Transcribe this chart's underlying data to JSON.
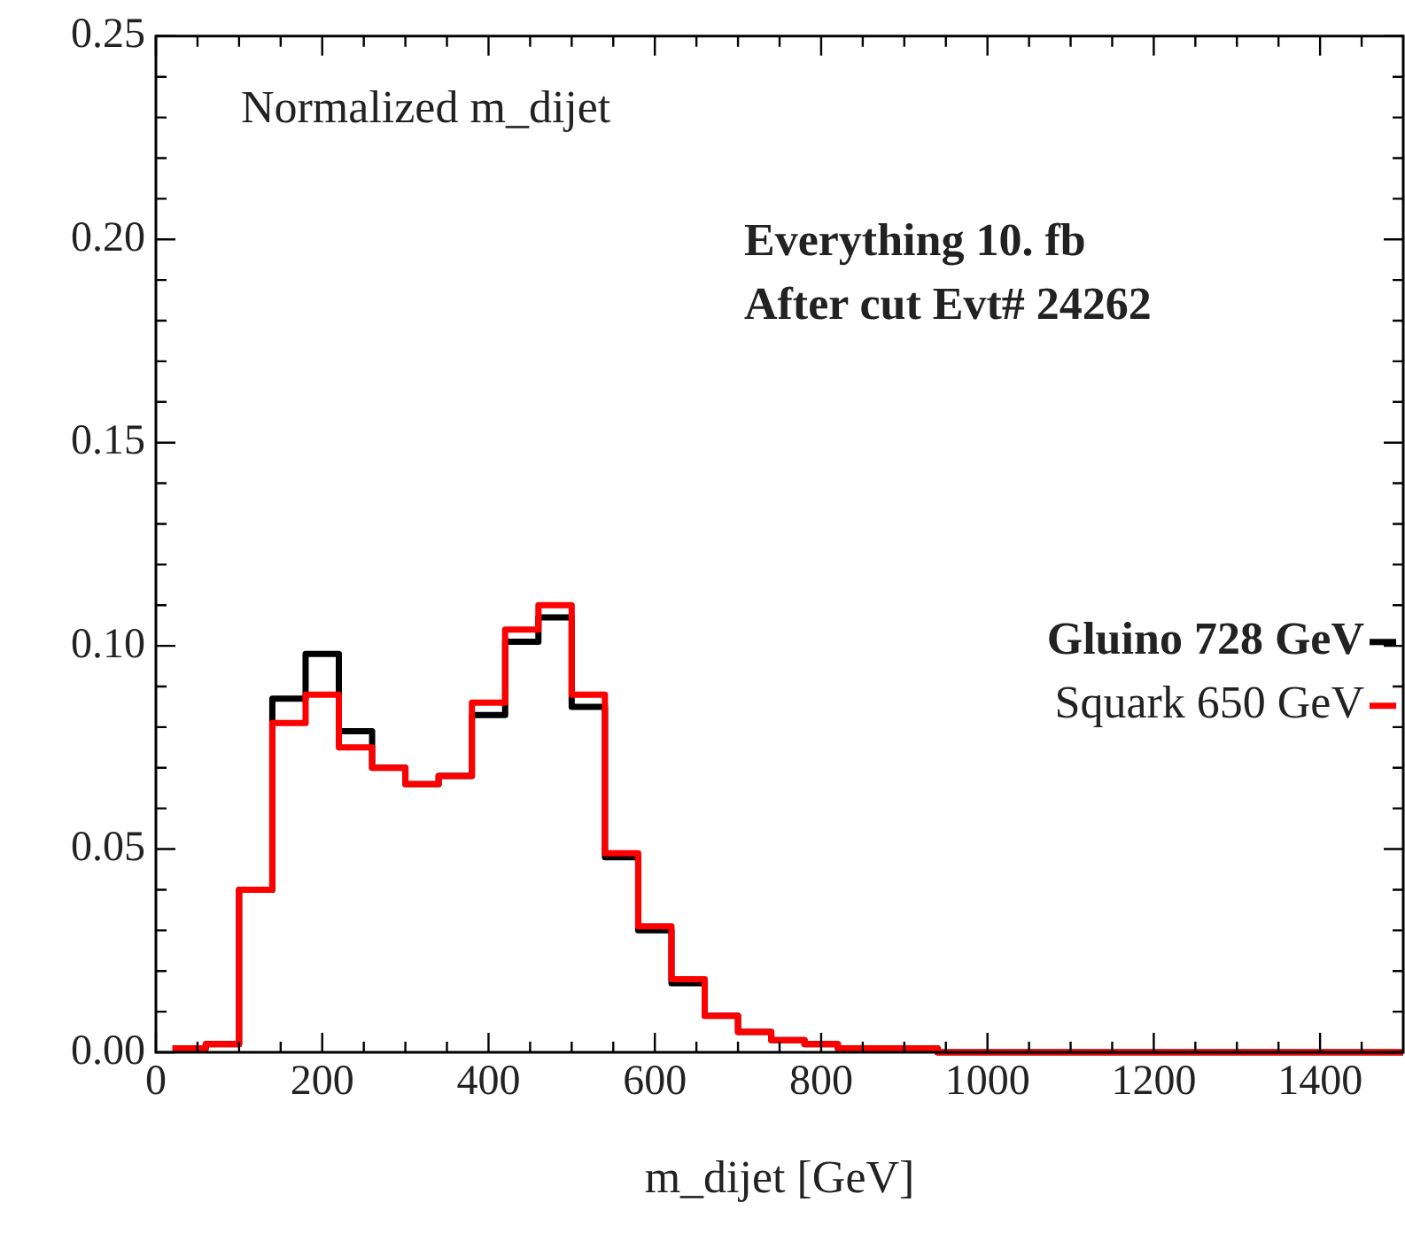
{
  "chart_data": {
    "type": "histogram",
    "title": "Normalized m_dijet",
    "xlabel": "m_dijet [GeV]",
    "annotations": [
      "Everything 10. fb",
      "After cut Evt# 24262"
    ],
    "bins": [
      20,
      60,
      100,
      140,
      180,
      220,
      260,
      300,
      340,
      380,
      420,
      460,
      500,
      540,
      580,
      620,
      660,
      700,
      740,
      780,
      820,
      860,
      900,
      940,
      980,
      1020,
      1060,
      1100,
      1140,
      1180,
      1220,
      1260,
      1300,
      1340,
      1380,
      1420,
      1460,
      1500
    ],
    "series": [
      {
        "name": "Gluino 728 GeV",
        "color": "#000000",
        "values": [
          0.001,
          0.002,
          0.04,
          0.087,
          0.098,
          0.079,
          0.07,
          0.066,
          0.068,
          0.083,
          0.101,
          0.107,
          0.085,
          0.048,
          0.03,
          0.017,
          0.009,
          0.005,
          0.003,
          0.002,
          0.001,
          0.001,
          0.001,
          0,
          0,
          0,
          0,
          0,
          0,
          0,
          0,
          0,
          0,
          0,
          0,
          0,
          0
        ]
      },
      {
        "name": "Squark 650 GeV",
        "color": "#ff0000",
        "values": [
          0.001,
          0.002,
          0.04,
          0.081,
          0.088,
          0.075,
          0.07,
          0.066,
          0.068,
          0.086,
          0.104,
          0.11,
          0.088,
          0.049,
          0.031,
          0.018,
          0.009,
          0.005,
          0.003,
          0.002,
          0.001,
          0.001,
          0.001,
          0,
          0,
          0,
          0,
          0,
          0,
          0,
          0,
          0,
          0,
          0,
          0,
          0,
          0
        ]
      }
    ],
    "xlim": [
      0,
      1500
    ],
    "xticks": [
      0,
      {
        "value": 50,
        "label": null
      },
      {
        "value": 100,
        "label": null
      },
      {
        "value": 150,
        "label": null
      },
      200,
      {
        "value": 250,
        "label": null
      },
      {
        "value": 300,
        "label": null
      },
      {
        "value": 350,
        "label": null
      },
      400,
      {
        "value": 450,
        "label": null
      },
      {
        "value": 500,
        "label": null
      },
      {
        "value": 550,
        "label": null
      },
      600,
      {
        "value": 650,
        "label": null
      },
      {
        "value": 700,
        "label": null
      },
      {
        "value": 750,
        "label": null
      },
      800,
      {
        "value": 850,
        "label": null
      },
      {
        "value": 900,
        "label": null
      },
      {
        "value": 950,
        "label": null
      },
      1000,
      {
        "value": 1050,
        "label": null
      },
      {
        "value": 1100,
        "label": null
      },
      {
        "value": 1150,
        "label": null
      },
      1200,
      {
        "value": 1250,
        "label": null
      },
      {
        "value": 1300,
        "label": null
      },
      {
        "value": 1350,
        "label": null
      },
      1400,
      {
        "value": 1450,
        "label": null
      }
    ],
    "ylim": [
      0,
      0.25
    ],
    "yticks": [
      {
        "value": 0,
        "label": "0.00"
      },
      {
        "value": 0.01,
        "label": null
      },
      {
        "value": 0.02,
        "label": null
      },
      {
        "value": 0.03,
        "label": null
      },
      {
        "value": 0.04,
        "label": null
      },
      {
        "value": 0.05,
        "label": "0.05"
      },
      {
        "value": 0.06,
        "label": null
      },
      {
        "value": 0.07,
        "label": null
      },
      {
        "value": 0.08,
        "label": null
      },
      {
        "value": 0.09,
        "label": null
      },
      {
        "value": 0.1,
        "label": "0.10"
      },
      {
        "value": 0.11,
        "label": null
      },
      {
        "value": 0.12,
        "label": null
      },
      {
        "value": 0.13,
        "label": null
      },
      {
        "value": 0.14,
        "label": null
      },
      {
        "value": 0.15,
        "label": "0.15"
      },
      {
        "value": 0.16,
        "label": null
      },
      {
        "value": 0.17,
        "label": null
      },
      {
        "value": 0.18,
        "label": null
      },
      {
        "value": 0.19,
        "label": null
      },
      {
        "value": 0.2,
        "label": "0.20"
      },
      {
        "value": 0.21,
        "label": null
      },
      {
        "value": 0.22,
        "label": null
      },
      {
        "value": 0.23,
        "label": null
      },
      {
        "value": 0.24,
        "label": null
      },
      {
        "value": 0.25,
        "label": "0.25"
      }
    ],
    "grid": false,
    "legend": "right",
    "line_style": "solid"
  }
}
